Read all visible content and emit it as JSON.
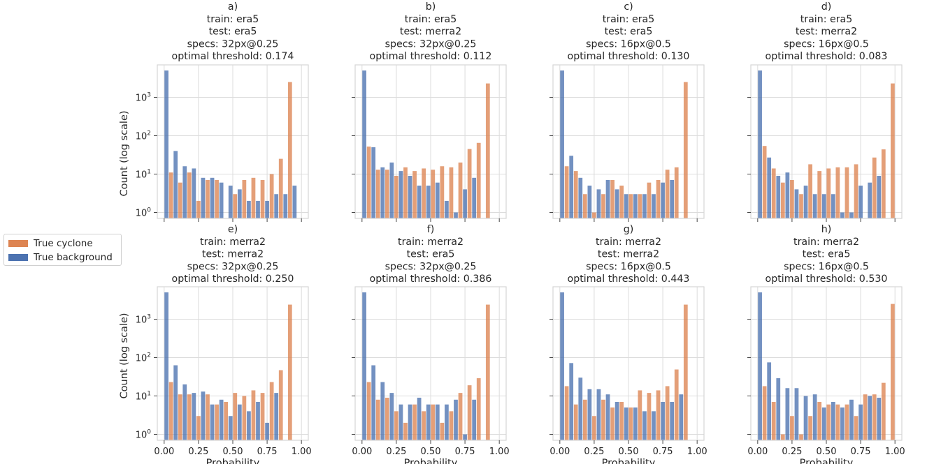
{
  "figure": {
    "ylabel": "Count (log scale)",
    "xlabel": "Probability",
    "x_ticks": [
      "0.00",
      "0.25",
      "0.50",
      "0.75",
      "1.00"
    ],
    "y_tick_base": "10",
    "y_tick_exponents": [
      "0",
      "1",
      "2",
      "3"
    ]
  },
  "legend": {
    "items": [
      {
        "label": "True cyclone",
        "color": "#dd8452"
      },
      {
        "label": "True background",
        "color": "#4c72b0"
      }
    ]
  },
  "colors": {
    "cyclone": "#dd8452",
    "background": "#4c72b0",
    "grid": "#dcdcdc",
    "axes": "#d6d6d6"
  },
  "chart_data": [
    {
      "type": "bar",
      "title_lines": [
        "a)",
        "train: era5",
        "test: era5",
        "specs: 32px@0.25",
        "optimal threshold: 0.174"
      ],
      "yscale": "log",
      "ylim": [
        0.7,
        7000
      ],
      "xlim": [
        -0.05,
        1.05
      ],
      "bins": 15,
      "series": [
        {
          "name": "True background",
          "values": [
            5000,
            40,
            16,
            14,
            8,
            8,
            6,
            5,
            4,
            2,
            2,
            2,
            3,
            3,
            5
          ]
        },
        {
          "name": "True cyclone",
          "values": [
            11,
            6,
            11,
            2,
            7,
            7,
            0,
            3,
            7,
            8,
            7,
            10,
            25,
            2500,
            0
          ]
        }
      ]
    },
    {
      "type": "bar",
      "title_lines": [
        "b)",
        "train: era5",
        "test: merra2",
        "specs: 32px@0.25",
        "optimal threshold: 0.112"
      ],
      "yscale": "log",
      "ylim": [
        0.7,
        7000
      ],
      "xlim": [
        -0.05,
        1.05
      ],
      "bins": 15,
      "series": [
        {
          "name": "True background",
          "values": [
            5000,
            50,
            15,
            20,
            12,
            9,
            5,
            5,
            6,
            2,
            1,
            4,
            8,
            0,
            0
          ]
        },
        {
          "name": "True cyclone",
          "values": [
            52,
            13,
            13,
            9,
            15,
            12,
            14,
            13,
            16,
            15,
            20,
            45,
            65,
            2300,
            0
          ]
        }
      ]
    },
    {
      "type": "bar",
      "title_lines": [
        "c)",
        "train: era5",
        "test: era5",
        "specs: 16px@0.5",
        "optimal threshold: 0.130"
      ],
      "yscale": "log",
      "ylim": [
        0.7,
        7000
      ],
      "xlim": [
        -0.05,
        1.05
      ],
      "bins": 15,
      "series": [
        {
          "name": "True background",
          "values": [
            5000,
            30,
            8,
            5,
            4,
            7,
            4,
            3,
            3,
            3,
            3,
            6,
            7,
            0,
            0
          ]
        },
        {
          "name": "True cyclone",
          "values": [
            16,
            12,
            3,
            1,
            3,
            7,
            5,
            3,
            3,
            6,
            7,
            13,
            15,
            2500,
            0
          ]
        }
      ]
    },
    {
      "type": "bar",
      "title_lines": [
        "d)",
        "train: era5",
        "test: merra2",
        "specs: 16px@0.5",
        "optimal threshold: 0.083"
      ],
      "yscale": "log",
      "ylim": [
        0.7,
        7000
      ],
      "xlim": [
        -0.05,
        1.05
      ],
      "bins": 15,
      "series": [
        {
          "name": "True background",
          "values": [
            5000,
            27,
            9,
            11,
            4,
            5,
            3,
            3,
            3,
            1,
            1,
            5,
            6,
            9,
            0
          ]
        },
        {
          "name": "True cyclone",
          "values": [
            54,
            14,
            6,
            7,
            3,
            18,
            12,
            14,
            15,
            15,
            18,
            0,
            27,
            44,
            2300
          ]
        }
      ]
    },
    {
      "type": "bar",
      "title_lines": [
        "e)",
        "train: merra2",
        "test: merra2",
        "specs: 32px@0.25",
        "optimal threshold: 0.250"
      ],
      "yscale": "log",
      "ylim": [
        0.7,
        7000
      ],
      "xlim": [
        -0.05,
        1.05
      ],
      "bins": 15,
      "series": [
        {
          "name": "True background",
          "values": [
            5000,
            63,
            20,
            12,
            13,
            6,
            8,
            3,
            6,
            4,
            7,
            2,
            12,
            0,
            0
          ]
        },
        {
          "name": "True cyclone",
          "values": [
            23,
            11,
            11,
            3,
            11,
            6,
            7,
            12,
            10,
            14,
            12,
            23,
            47,
            2400,
            0
          ]
        }
      ]
    },
    {
      "type": "bar",
      "title_lines": [
        "f)",
        "train: merra2",
        "test: era5",
        "specs: 32px@0.25",
        "optimal threshold: 0.386"
      ],
      "yscale": "log",
      "ylim": [
        0.7,
        7000
      ],
      "xlim": [
        -0.05,
        1.05
      ],
      "bins": 15,
      "series": [
        {
          "name": "True background",
          "values": [
            5000,
            63,
            23,
            12,
            6,
            6,
            9,
            6,
            6,
            6,
            8,
            1,
            8,
            0,
            0
          ]
        },
        {
          "name": "True cyclone",
          "values": [
            23,
            8,
            9,
            4,
            2,
            6,
            4,
            6,
            2,
            4,
            12,
            19,
            29,
            2400,
            0
          ]
        }
      ]
    },
    {
      "type": "bar",
      "title_lines": [
        "g)",
        "train: merra2",
        "test: merra2",
        "specs: 16px@0.5",
        "optimal threshold: 0.443"
      ],
      "yscale": "log",
      "ylim": [
        0.7,
        7000
      ],
      "xlim": [
        -0.05,
        1.05
      ],
      "bins": 15,
      "series": [
        {
          "name": "True background",
          "values": [
            5000,
            72,
            30,
            15,
            15,
            11,
            7,
            5,
            5,
            4,
            4,
            7,
            7,
            11,
            0
          ]
        },
        {
          "name": "True cyclone",
          "values": [
            18,
            6,
            8,
            3,
            8,
            5,
            7,
            5,
            14,
            12,
            14,
            18,
            49,
            2400,
            0
          ]
        }
      ]
    },
    {
      "type": "bar",
      "title_lines": [
        "h)",
        "train: merra2",
        "test: era5",
        "specs: 16px@0.5",
        "optimal threshold: 0.530"
      ],
      "yscale": "log",
      "ylim": [
        0.7,
        7000
      ],
      "xlim": [
        -0.05,
        1.05
      ],
      "bins": 15,
      "series": [
        {
          "name": "True background",
          "values": [
            5000,
            75,
            29,
            16,
            16,
            10,
            11,
            5,
            7,
            5,
            8,
            6,
            10,
            9,
            0
          ]
        },
        {
          "name": "True cyclone",
          "values": [
            18,
            7,
            1,
            3,
            1,
            3,
            7,
            6,
            6,
            6,
            3,
            11,
            11,
            22,
            2500
          ]
        }
      ]
    }
  ]
}
